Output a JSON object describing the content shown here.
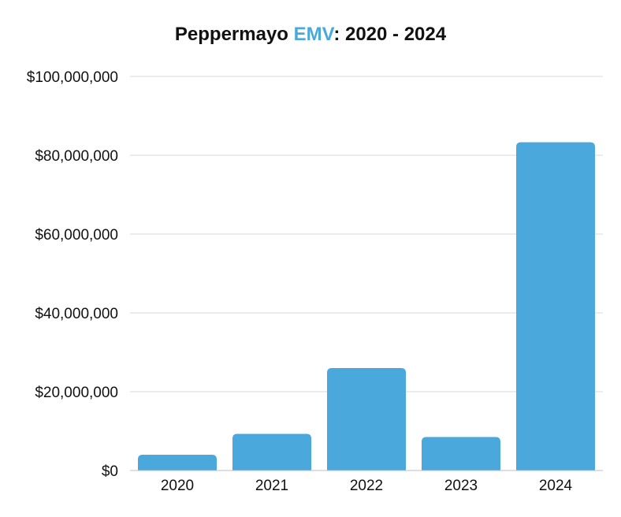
{
  "chart_data": {
    "type": "bar",
    "title_prefix": "Peppermayo ",
    "title_accent": "EMV",
    "title_suffix": ": 2020 - 2024",
    "categories": [
      "2020",
      "2021",
      "2022",
      "2023",
      "2024"
    ],
    "values": [
      4000000,
      9300000,
      26000000,
      8500000,
      83300000
    ],
    "ylim": [
      0,
      100000000
    ],
    "yticks": [
      0,
      20000000,
      40000000,
      60000000,
      80000000,
      100000000
    ],
    "ytick_labels": [
      "$0",
      "$20,000,000",
      "$40,000,000",
      "$60,000,000",
      "$80,000,000",
      "$100,000,000"
    ],
    "xlabel": "",
    "ylabel": "",
    "grid": true,
    "bar_color": "#4aa8dd",
    "accent_color": "#4aa8dd"
  }
}
